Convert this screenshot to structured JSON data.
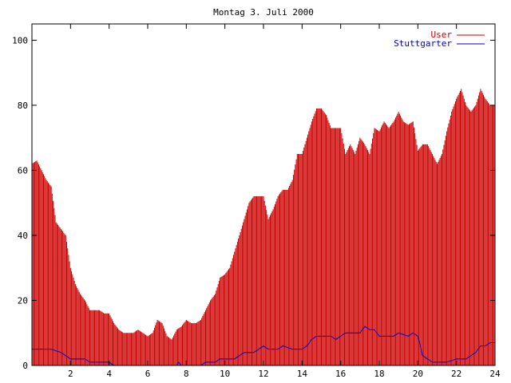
{
  "chart_data": {
    "type": "bar",
    "title": "Montag 3. Juli 2000",
    "xlabel": "",
    "ylabel": "",
    "xlim": [
      0,
      24
    ],
    "ylim": [
      0,
      105
    ],
    "x_ticks": [
      2,
      4,
      6,
      8,
      10,
      12,
      14,
      16,
      18,
      20,
      22,
      24
    ],
    "y_ticks": [
      0,
      20,
      40,
      60,
      80,
      100
    ],
    "legend_position": "top-right",
    "grid": false,
    "colors": {
      "user": "#cc0000",
      "stuttgarter": "#0000cc"
    },
    "series": [
      {
        "name": "User",
        "style": "impulses",
        "points": [
          [
            0.0,
            62
          ],
          [
            0.25,
            63
          ],
          [
            0.5,
            60
          ],
          [
            0.75,
            57
          ],
          [
            1.0,
            55
          ],
          [
            1.25,
            44
          ],
          [
            1.5,
            42
          ],
          [
            1.75,
            40
          ],
          [
            2.0,
            30
          ],
          [
            2.25,
            25
          ],
          [
            2.5,
            22
          ],
          [
            2.75,
            20
          ],
          [
            3.0,
            17
          ],
          [
            3.25,
            17
          ],
          [
            3.5,
            17
          ],
          [
            3.75,
            16
          ],
          [
            4.0,
            16
          ],
          [
            4.25,
            13
          ],
          [
            4.5,
            11
          ],
          [
            4.75,
            10
          ],
          [
            5.0,
            10
          ],
          [
            5.25,
            10
          ],
          [
            5.5,
            11
          ],
          [
            5.75,
            10
          ],
          [
            6.0,
            9
          ],
          [
            6.25,
            10
          ],
          [
            6.5,
            14
          ],
          [
            6.75,
            13
          ],
          [
            7.0,
            9
          ],
          [
            7.25,
            8
          ],
          [
            7.5,
            11
          ],
          [
            7.75,
            12
          ],
          [
            8.0,
            14
          ],
          [
            8.25,
            13
          ],
          [
            8.5,
            13
          ],
          [
            8.75,
            14
          ],
          [
            9.0,
            17
          ],
          [
            9.25,
            20
          ],
          [
            9.5,
            22
          ],
          [
            9.75,
            27
          ],
          [
            10.0,
            28
          ],
          [
            10.25,
            30
          ],
          [
            10.5,
            35
          ],
          [
            10.75,
            40
          ],
          [
            11.0,
            45
          ],
          [
            11.25,
            50
          ],
          [
            11.5,
            52
          ],
          [
            11.75,
            52
          ],
          [
            12.0,
            52
          ],
          [
            12.25,
            45
          ],
          [
            12.5,
            48
          ],
          [
            12.75,
            52
          ],
          [
            13.0,
            54
          ],
          [
            13.25,
            54
          ],
          [
            13.5,
            57
          ],
          [
            13.75,
            65
          ],
          [
            14.0,
            65
          ],
          [
            14.25,
            70
          ],
          [
            14.5,
            75
          ],
          [
            14.75,
            79
          ],
          [
            15.0,
            79
          ],
          [
            15.25,
            77
          ],
          [
            15.5,
            73
          ],
          [
            15.75,
            73
          ],
          [
            16.0,
            73
          ],
          [
            16.25,
            65
          ],
          [
            16.5,
            68
          ],
          [
            16.75,
            65
          ],
          [
            17.0,
            70
          ],
          [
            17.25,
            68
          ],
          [
            17.5,
            65
          ],
          [
            17.75,
            73
          ],
          [
            18.0,
            72
          ],
          [
            18.25,
            75
          ],
          [
            18.5,
            73
          ],
          [
            18.75,
            75
          ],
          [
            19.0,
            78
          ],
          [
            19.25,
            75
          ],
          [
            19.5,
            74
          ],
          [
            19.75,
            75
          ],
          [
            20.0,
            66
          ],
          [
            20.25,
            68
          ],
          [
            20.5,
            68
          ],
          [
            20.75,
            65
          ],
          [
            21.0,
            62
          ],
          [
            21.25,
            65
          ],
          [
            21.5,
            72
          ],
          [
            21.75,
            78
          ],
          [
            22.0,
            82
          ],
          [
            22.25,
            85
          ],
          [
            22.5,
            80
          ],
          [
            22.75,
            78
          ],
          [
            23.0,
            80
          ],
          [
            23.25,
            85
          ],
          [
            23.5,
            82
          ],
          [
            23.75,
            80
          ]
        ]
      },
      {
        "name": "Stuttgarter",
        "style": "lines",
        "points": [
          [
            0.0,
            5
          ],
          [
            1.0,
            5
          ],
          [
            1.5,
            4
          ],
          [
            1.75,
            3
          ],
          [
            2.0,
            2
          ],
          [
            2.5,
            2
          ],
          [
            2.75,
            2
          ],
          [
            3.0,
            1
          ],
          [
            4.0,
            1
          ],
          [
            4.25,
            0
          ],
          [
            7.5,
            0
          ],
          [
            7.6,
            1
          ],
          [
            7.75,
            0
          ],
          [
            8.75,
            0
          ],
          [
            9.0,
            1
          ],
          [
            9.5,
            1
          ],
          [
            9.75,
            2
          ],
          [
            10.5,
            2
          ],
          [
            11.0,
            4
          ],
          [
            11.5,
            4
          ],
          [
            12.0,
            6
          ],
          [
            12.25,
            5
          ],
          [
            12.75,
            5
          ],
          [
            13.0,
            6
          ],
          [
            13.5,
            5
          ],
          [
            14.0,
            5
          ],
          [
            14.25,
            6
          ],
          [
            14.5,
            8
          ],
          [
            14.75,
            9
          ],
          [
            15.5,
            9
          ],
          [
            15.75,
            8
          ],
          [
            16.0,
            9
          ],
          [
            16.25,
            10
          ],
          [
            17.0,
            10
          ],
          [
            17.25,
            12
          ],
          [
            17.5,
            11
          ],
          [
            17.75,
            11
          ],
          [
            18.0,
            9
          ],
          [
            18.5,
            9
          ],
          [
            18.75,
            9
          ],
          [
            19.0,
            10
          ],
          [
            19.5,
            9
          ],
          [
            19.75,
            10
          ],
          [
            20.0,
            9
          ],
          [
            20.25,
            3
          ],
          [
            20.5,
            2
          ],
          [
            20.75,
            1
          ],
          [
            21.5,
            1
          ],
          [
            22.0,
            2
          ],
          [
            22.5,
            2
          ],
          [
            22.75,
            3
          ],
          [
            23.0,
            4
          ],
          [
            23.25,
            6
          ],
          [
            23.5,
            6
          ],
          [
            23.75,
            7
          ],
          [
            24.0,
            7
          ]
        ]
      }
    ]
  }
}
